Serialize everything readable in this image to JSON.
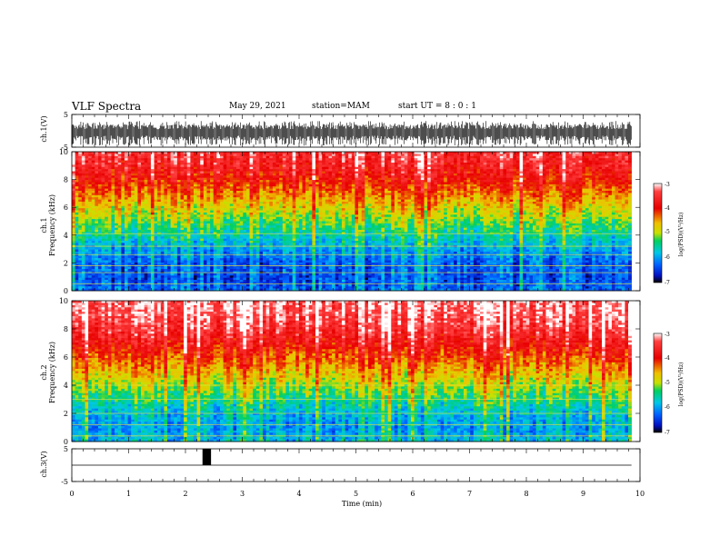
{
  "header": {
    "title": "VLF Spectra",
    "date": "May 29, 2021",
    "station": "station=MAM",
    "start": "start UT =  8 : 0 : 1"
  },
  "chart_data": [
    {
      "type": "line",
      "panel": "ch1-waveform",
      "ylabel": "ch.1(V)",
      "ylim": [
        -5,
        5
      ],
      "yticks": [
        5,
        -5
      ],
      "x": [
        0,
        1,
        2,
        3,
        4,
        5,
        6,
        7,
        8,
        9,
        10
      ],
      "description_values": "dense noisy waveform spanning approx -5 to 3 V"
    },
    {
      "type": "heatmap",
      "panel": "ch1-spectrogram",
      "ylabel": "ch.1 Frequency (kHz)",
      "ylim": [
        0,
        10
      ],
      "yticks": [
        0,
        2,
        4,
        6,
        8,
        10
      ],
      "xlim": [
        0,
        9.85
      ],
      "colorbar": {
        "label": "log(PSD)(V²/Hz)",
        "range": [
          -7,
          -3
        ],
        "ticks": [
          "-3",
          "-4",
          "-5",
          "-6",
          "-7"
        ]
      },
      "frequency_profile_kHz": [
        0,
        1,
        2,
        3,
        4,
        5,
        6,
        7,
        8,
        9,
        10
      ],
      "log_psd_profile": [
        -6.3,
        -6.4,
        -6.3,
        -6.0,
        -5.6,
        -5.2,
        -4.8,
        -4.4,
        -4.0,
        -3.7,
        -3.5
      ],
      "bright_lines_kHz": [
        0.5,
        1.3,
        1.8,
        2.6,
        3.2,
        4.1
      ]
    },
    {
      "type": "heatmap",
      "panel": "ch2-spectrogram",
      "ylabel": "ch.2 Frequency (kHz)",
      "ylim": [
        0,
        10
      ],
      "yticks": [
        0,
        2,
        4,
        6,
        8,
        10
      ],
      "xlim": [
        0,
        9.85
      ],
      "colorbar": {
        "label": "log(PSD)(V²/Hz)",
        "range": [
          -7,
          -3
        ],
        "ticks": [
          "-3",
          "-4",
          "-5",
          "-6",
          "-7"
        ]
      },
      "frequency_profile_kHz": [
        0,
        1,
        2,
        3,
        4,
        5,
        6,
        7,
        8,
        9,
        10
      ],
      "log_psd_profile": [
        -5.8,
        -6.0,
        -5.8,
        -5.4,
        -5.0,
        -4.6,
        -4.2,
        -3.8,
        -3.5,
        -3.3,
        -3.2
      ],
      "bright_lines_kHz": [
        0.4,
        1.2,
        2.0,
        3.0,
        4.0
      ]
    },
    {
      "type": "line",
      "panel": "ch3-waveform",
      "ylabel": "ch.3(V)",
      "ylim": [
        -5,
        5
      ],
      "yticks": [
        5,
        -5
      ],
      "baseline": 0,
      "pulse": {
        "x_start": 2.3,
        "x_end": 2.45,
        "low": 0,
        "high": 5
      },
      "xlabel": "Time (min)",
      "x_ticks": [
        0,
        1,
        2,
        3,
        4,
        5,
        6,
        7,
        8,
        9,
        10
      ]
    }
  ]
}
